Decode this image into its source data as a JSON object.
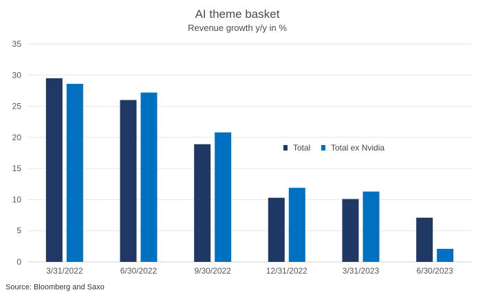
{
  "chart_data": {
    "type": "bar",
    "title": "AI theme basket",
    "subtitle": "Revenue growth y/y in %",
    "categories": [
      "3/31/2022",
      "6/30/2022",
      "9/30/2022",
      "12/31/2022",
      "3/31/2023",
      "6/30/2023"
    ],
    "series": [
      {
        "name": "Total",
        "color": "#1f3864",
        "values": [
          29.5,
          26.0,
          18.9,
          10.3,
          10.1,
          7.1
        ]
      },
      {
        "name": "Total ex Nvidia",
        "color": "#0070c0",
        "values": [
          28.6,
          27.2,
          20.8,
          11.9,
          11.3,
          2.1
        ]
      }
    ],
    "ylim": [
      0,
      35
    ],
    "yticks": [
      0,
      5,
      10,
      15,
      20,
      25,
      30,
      35
    ],
    "grid": true,
    "legend_position": "center-right",
    "xlabel": "",
    "ylabel": "",
    "source": "Source: Bloomberg and Saxo"
  }
}
